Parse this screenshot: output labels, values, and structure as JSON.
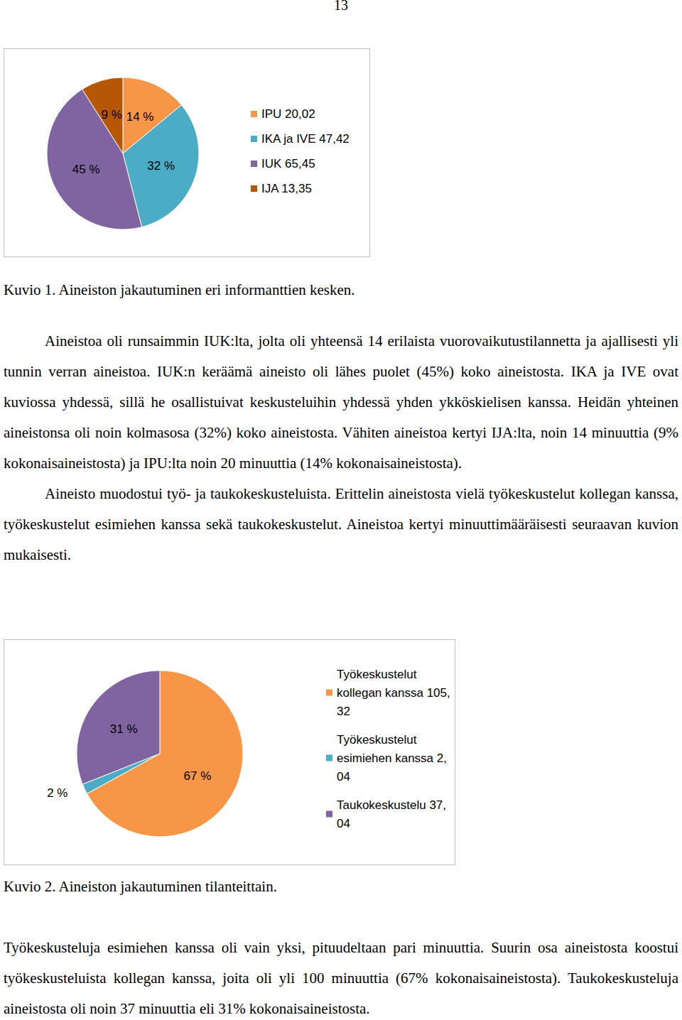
{
  "chart_data": [
    {
      "type": "pie",
      "categories": [
        "IPU 20,02",
        "IKA ja IVE 47,42",
        "IUK 65,45",
        "IJA 13,35"
      ],
      "values": [
        14,
        32,
        45,
        9
      ],
      "value_labels": [
        "14 %",
        "32 %",
        "45 %",
        "9 %"
      ],
      "colors": [
        "#f79646",
        "#4bacc6",
        "#8064a2",
        "#b65708"
      ],
      "data_labels": true,
      "legend": "right"
    },
    {
      "type": "pie",
      "categories": [
        "Työkeskustelut kollegan kanssa 105,32",
        "Työkeskustelut esimiehen kanssa 2,04",
        "Taukokeskustelu 37,04"
      ],
      "values": [
        67,
        2,
        31
      ],
      "value_labels": [
        "67 %",
        "2 %",
        "31 %"
      ],
      "colors": [
        "#f79646",
        "#4bacc6",
        "#8064a2"
      ],
      "data_labels": true,
      "legend": "right"
    }
  ],
  "document": {
    "page_number": "13",
    "figure_captions": [
      "Kuvio 1. Aineiston jakautuminen eri informanttien kesken.",
      "Kuvio 2. Aineiston jakautuminen tilanteittain."
    ],
    "paragraphs_after_figure_1": [
      {
        "text": "Aineistoa oli runsaimmin IUK:lta, jolta oli yhteensä 14 erilaista vuorovaikutustilannetta ja ajallisesti yli tunnin verran aineistoa. IUK:n keräämä aineisto oli lähes puolet (45%) koko aineistosta. IKA ja IVE ovat kuviossa yhdessä, sillä he osallistuivat keskusteluihin yhdessä yhden ykköskielisen kanssa. Heidän yhteinen aineistonsa oli noin kolmasosa (32%) koko aineistosta. Vähiten aineistoa kertyi IJA:lta, noin 14 minuuttia (9% kokonaisaineistosta) ja IPU:lta noin 20 minuuttia (14% kokonaisaineistosta).",
        "indent": true
      },
      {
        "text": "Aineisto muodostui työ- ja taukokeskusteluista. Erittelin aineistosta vielä työkeskustelut kollegan kanssa, työkeskustelut esimiehen kanssa sekä taukokeskustelut. Aineistoa kertyi minuuttimääräisesti seuraavan kuvion mukaisesti.",
        "indent": true
      }
    ],
    "paragraphs_after_figure_2": [
      {
        "text": "Työkeskusteluja esimiehen kanssa oli vain yksi, pituudeltaan pari minuuttia. Suurin osa aineistosta koostui työkeskusteluista kollegan kanssa, joita oli yli 100 minuuttia (67% kokonaisaineistosta). Taukokeskusteluja aineistosta oli noin 37 minuuttia eli 31% kokonaisaineistosta.",
        "indent": false
      }
    ]
  }
}
